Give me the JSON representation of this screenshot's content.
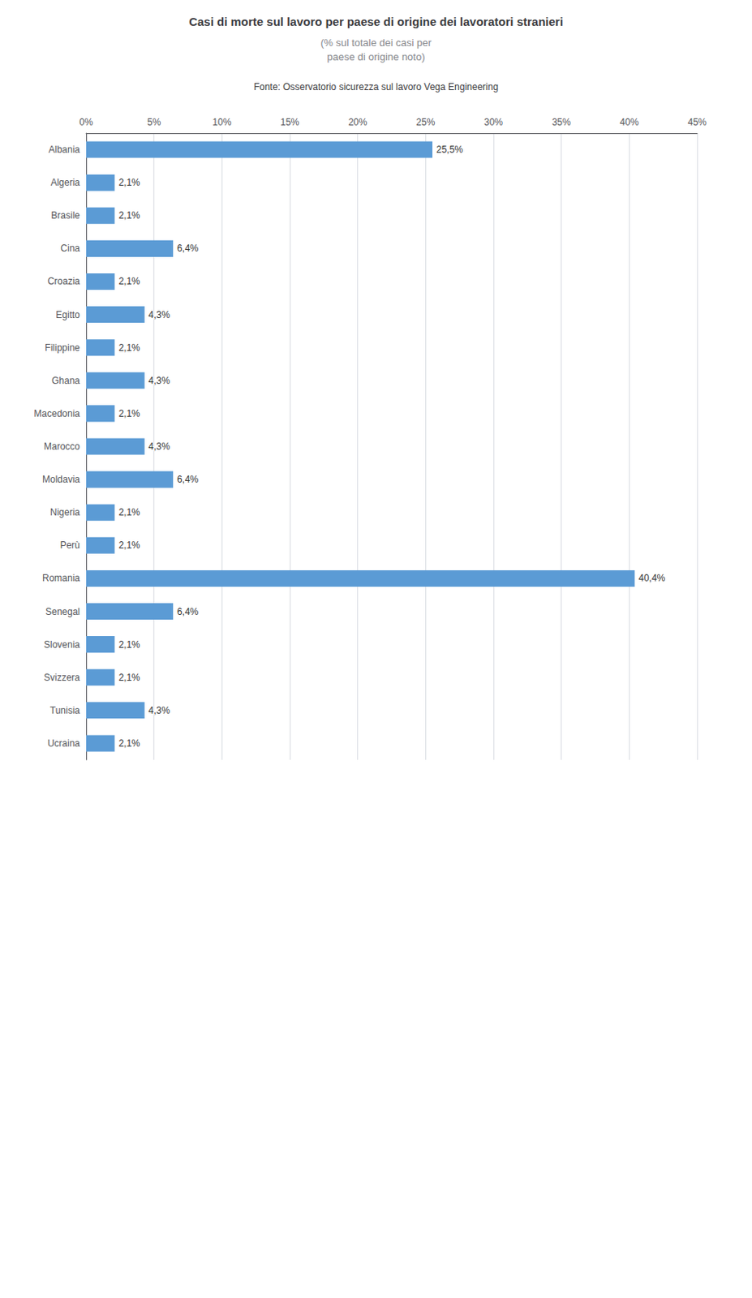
{
  "chart_data": {
    "type": "bar",
    "orientation": "horizontal",
    "title": "Casi di morte sul lavoro per paese di origine dei lavoratori stranieri",
    "subtitle": "(% sul totale dei casi per\npaese di origine noto)",
    "annotations": [
      "Fonte: Osservatorio sicurezza sul lavoro Vega Engineering"
    ],
    "categories": [
      "Albania",
      "Algeria",
      "Brasile",
      "Cina",
      "Croazia",
      "Egitto",
      "Filippine",
      "Ghana",
      "Macedonia",
      "Marocco",
      "Moldavia",
      "Nigeria",
      "Perù",
      "Romania",
      "Senegal",
      "Slovenia",
      "Svizzera",
      "Tunisia",
      "Ucraina"
    ],
    "values": [
      25.5,
      2.1,
      2.1,
      6.4,
      2.1,
      4.3,
      2.1,
      4.3,
      2.1,
      4.3,
      6.4,
      2.1,
      2.1,
      40.4,
      6.4,
      2.1,
      2.1,
      4.3,
      2.1
    ],
    "value_labels": [
      "25,5%",
      "2,1%",
      "2,1%",
      "6,4%",
      "2,1%",
      "4,3%",
      "2,1%",
      "4,3%",
      "2,1%",
      "4,3%",
      "6,4%",
      "2,1%",
      "2,1%",
      "40,4%",
      "6,4%",
      "2,1%",
      "2,1%",
      "4,3%",
      "2,1%"
    ],
    "data_labels": true,
    "color": "#5B9BD5",
    "xlim": [
      0,
      45
    ],
    "xticks": [
      {
        "value": 0,
        "label": "0%"
      },
      {
        "value": 5,
        "label": "5%"
      },
      {
        "value": 10,
        "label": "10%"
      },
      {
        "value": 15,
        "label": "15%"
      },
      {
        "value": 20,
        "label": "20%"
      },
      {
        "value": 25,
        "label": "25%"
      },
      {
        "value": 30,
        "label": "30%"
      },
      {
        "value": 35,
        "label": "35%"
      },
      {
        "value": 40,
        "label": "40%"
      },
      {
        "value": 45,
        "label": "45%"
      }
    ],
    "grid": true
  }
}
